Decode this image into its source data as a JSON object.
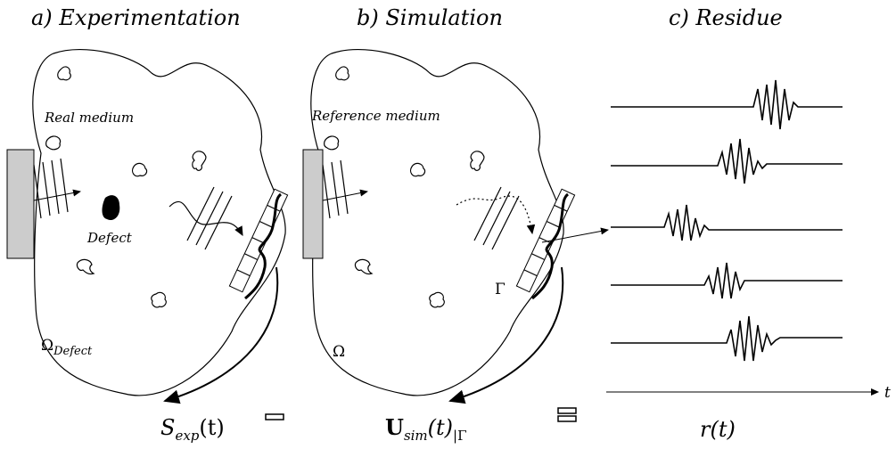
{
  "panels": [
    {
      "title": "a) Experimentation",
      "medium": "Real medium",
      "defect": "Defect",
      "domain": {
        "main": "Ω",
        "sub": "Defect"
      },
      "output": {
        "main": "S",
        "sub": "exp",
        "arg": "(t)"
      }
    },
    {
      "title": "b) Simulation",
      "medium": "Reference medium",
      "boundary": "Γ",
      "domain": "Ω",
      "output": {
        "main": "U",
        "sub": "sim",
        "arg": "(t)",
        "restriction": "|Γ"
      }
    },
    {
      "title": "c) Residue",
      "axis": "t",
      "output": "r(t)"
    }
  ]
}
